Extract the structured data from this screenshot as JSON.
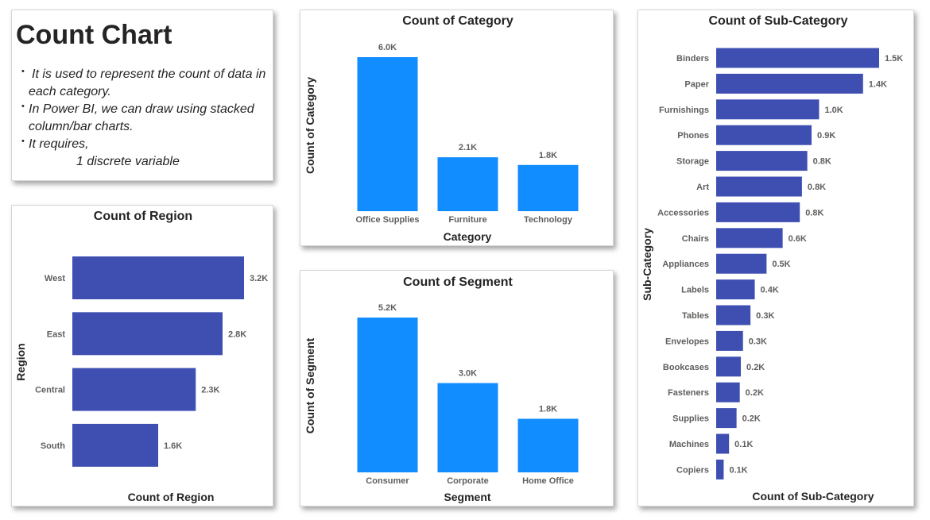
{
  "intro": {
    "title": "Count Chart",
    "bullets": [
      "It is used to represent the count of data in each category.",
      "In Power BI, we can draw using stacked column/bar charts.",
      "It requires,"
    ],
    "requirement": "1 discrete variable"
  },
  "colors": {
    "column": "#118dff",
    "bar": "#3f4fb1"
  },
  "chart_data": [
    {
      "id": "category",
      "type": "bar",
      "orientation": "vertical",
      "title": "Count of Category",
      "xlabel": "Category",
      "ylabel": "Count of Category",
      "categories": [
        "Office Supplies",
        "Furniture",
        "Technology"
      ],
      "values": [
        6.0,
        2.1,
        1.8
      ],
      "labels": [
        "6.0K",
        "2.1K",
        "1.8K"
      ],
      "units": "thousands",
      "ylim": [
        0,
        6.0
      ],
      "grid": false
    },
    {
      "id": "segment",
      "type": "bar",
      "orientation": "vertical",
      "title": "Count of Segment",
      "xlabel": "Segment",
      "ylabel": "Count of Segment",
      "categories": [
        "Consumer",
        "Corporate",
        "Home Office"
      ],
      "values": [
        5.2,
        3.0,
        1.8
      ],
      "labels": [
        "5.2K",
        "3.0K",
        "1.8K"
      ],
      "units": "thousands",
      "ylim": [
        0,
        5.2
      ],
      "grid": false
    },
    {
      "id": "region",
      "type": "bar",
      "orientation": "horizontal",
      "title": "Count of Region",
      "xlabel": "Count of Region",
      "ylabel": "Region",
      "categories": [
        "West",
        "East",
        "Central",
        "South"
      ],
      "values": [
        3.2,
        2.8,
        2.3,
        1.6
      ],
      "labels": [
        "3.2K",
        "2.8K",
        "2.3K",
        "1.6K"
      ],
      "units": "thousands",
      "xlim": [
        0,
        3.2
      ],
      "grid": false
    },
    {
      "id": "subcategory",
      "type": "bar",
      "orientation": "horizontal",
      "title": "Count of Sub-Category",
      "xlabel": "Count of Sub-Category",
      "ylabel": "Sub-Category",
      "categories": [
        "Binders",
        "Paper",
        "Furnishings",
        "Phones",
        "Storage",
        "Art",
        "Accessories",
        "Chairs",
        "Appliances",
        "Labels",
        "Tables",
        "Envelopes",
        "Bookcases",
        "Fasteners",
        "Supplies",
        "Machines",
        "Copiers"
      ],
      "values": [
        1.52,
        1.37,
        0.96,
        0.89,
        0.85,
        0.8,
        0.78,
        0.62,
        0.47,
        0.36,
        0.32,
        0.25,
        0.23,
        0.22,
        0.19,
        0.12,
        0.07
      ],
      "labels": [
        "1.5K",
        "1.4K",
        "1.0K",
        "0.9K",
        "0.8K",
        "0.8K",
        "0.8K",
        "0.6K",
        "0.5K",
        "0.4K",
        "0.3K",
        "0.3K",
        "0.2K",
        "0.2K",
        "0.2K",
        "0.1K",
        "0.1K"
      ],
      "units": "thousands",
      "xlim": [
        0,
        1.52
      ],
      "grid": false
    }
  ]
}
